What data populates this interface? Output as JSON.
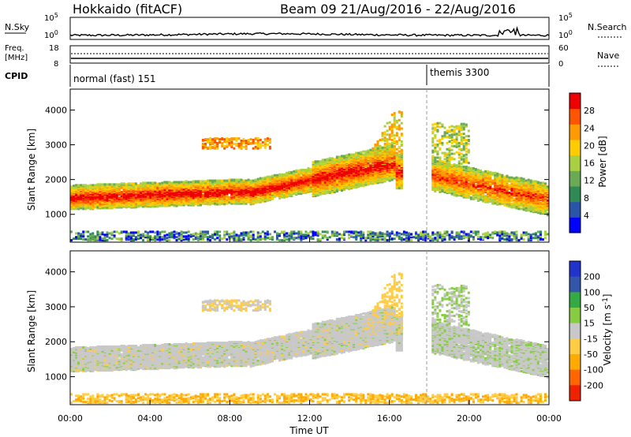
{
  "header": {
    "station": "Hokkaido (fitACF)",
    "beam_info": "Beam 09   21/Aug/2016 - 22/Aug/2016"
  },
  "noise_panel": {
    "left_label": "N.Sky",
    "right_label": "N.Search",
    "ticks_left": [
      "10^5",
      "10^0"
    ],
    "ticks_right": [
      "10^5",
      "10^0"
    ]
  },
  "freq_panel": {
    "left_label_line1": "Freq.",
    "left_label_line2": "[MHz]",
    "right_label": "Nave",
    "ticks_left": [
      "18",
      "8"
    ],
    "ticks_right": [
      "60",
      "0"
    ]
  },
  "cpid_panel": {
    "label": "CPID",
    "modes": [
      {
        "start_hour": 0,
        "label": "normal (fast) 151"
      },
      {
        "start_hour": 18,
        "label": "themis 3300"
      }
    ]
  },
  "colors": {
    "power_scale": [
      "#0000ff",
      "#2a54a8",
      "#2f8a55",
      "#6aaa55",
      "#a8d040",
      "#ffcc00",
      "#ff9a00",
      "#ff5500",
      "#ee0000"
    ],
    "velocity_scale": [
      "#2233cc",
      "#3355aa",
      "#33aa44",
      "#88cc44",
      "#c8c8c8",
      "#ffcc44",
      "#ffaa00",
      "#ff6600",
      "#ee2200"
    ]
  },
  "chart_data": [
    {
      "type": "heatmap",
      "name": "power",
      "ylabel": "Slant Range [km]",
      "xlabel": "Time UT",
      "x_ticks": [
        "00:00",
        "04:00",
        "08:00",
        "12:00",
        "16:00",
        "20:00",
        "00:00"
      ],
      "y_ticks": [
        "1000",
        "2000",
        "3000",
        "4000"
      ],
      "ylim": [
        200,
        4600
      ],
      "xlim_hours": [
        0,
        24
      ],
      "colorbar_label": "Power [dB]",
      "colorbar_ticks": [
        "4",
        "8",
        "12",
        "16",
        "20",
        "24",
        "28"
      ],
      "regions": [
        {
          "t0": 0,
          "t1": 16.5,
          "r0": 1150,
          "r1": 2700,
          "kind": "main"
        },
        {
          "t0": 6.5,
          "t1": 10,
          "r0": 2800,
          "r1": 3200,
          "kind": "upper"
        },
        {
          "t0": 18,
          "t1": 24,
          "r0": 700,
          "r1": 2800,
          "kind": "late"
        },
        {
          "t0": 0,
          "t1": 24,
          "r0": 200,
          "r1": 500,
          "kind": "ground"
        }
      ]
    },
    {
      "type": "heatmap",
      "name": "velocity",
      "ylabel": "Slant Range [km]",
      "xlabel": "Time UT",
      "x_ticks": [
        "00:00",
        "04:00",
        "08:00",
        "12:00",
        "16:00",
        "20:00",
        "00:00"
      ],
      "y_ticks": [
        "1000",
        "2000",
        "3000",
        "4000"
      ],
      "ylim": [
        200,
        4600
      ],
      "xlim_hours": [
        0,
        24
      ],
      "colorbar_label": "Velocity [m s^-1]",
      "colorbar_ticks": [
        "200",
        "100",
        "50",
        "15",
        "-15",
        "-50",
        "-100",
        "-200"
      ]
    }
  ],
  "axis": {
    "time_label": "Time UT"
  }
}
